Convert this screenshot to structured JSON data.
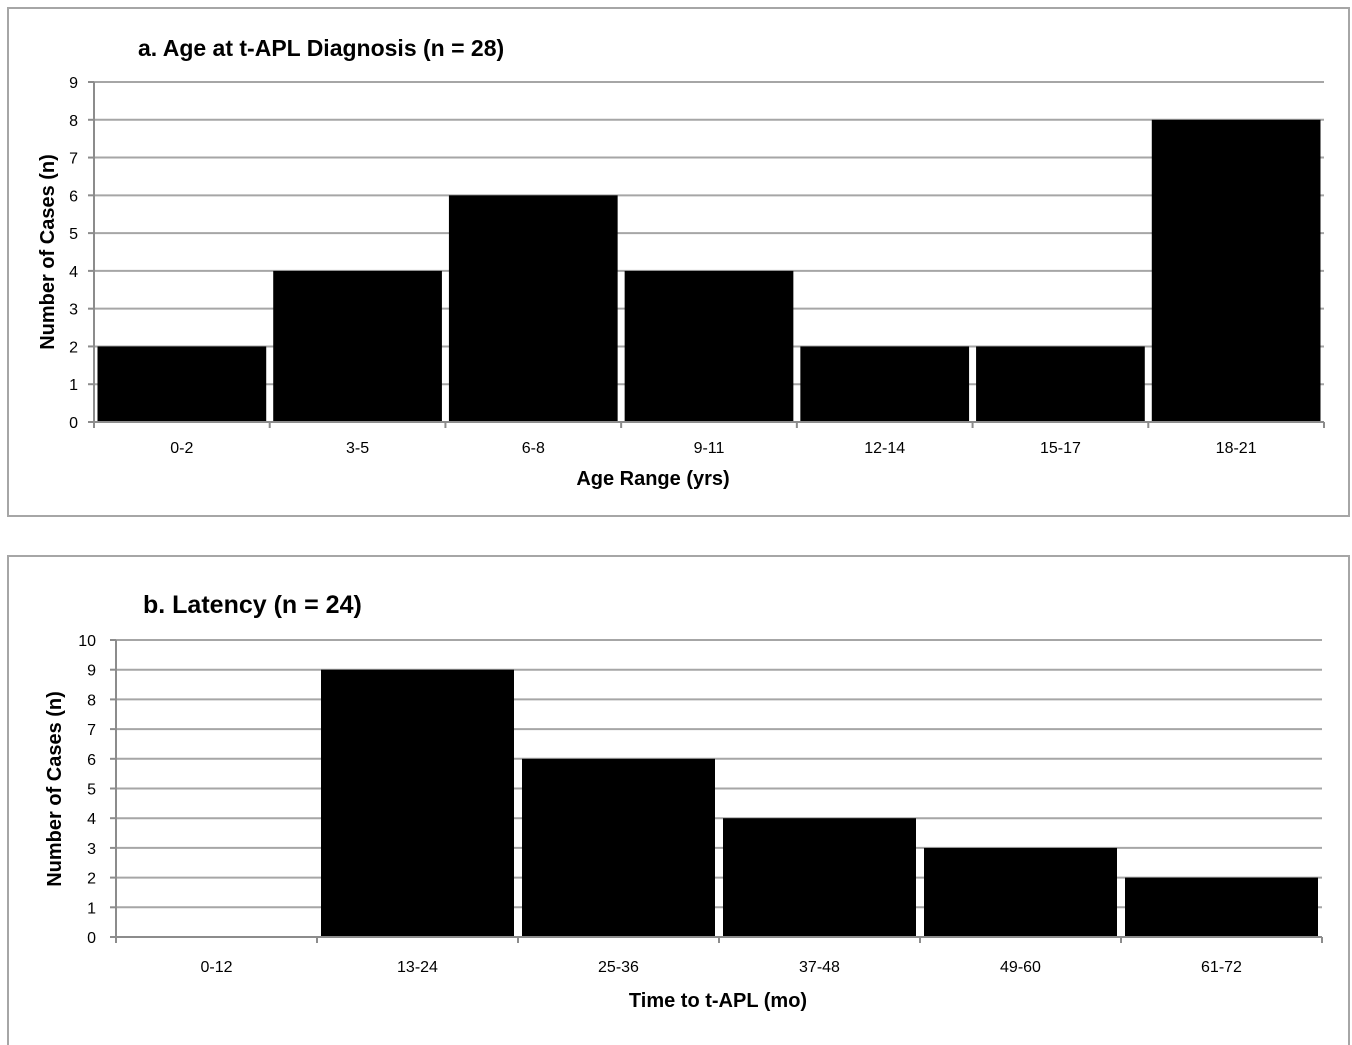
{
  "colors": {
    "bar": "#000000",
    "grid": "#a6a6a6",
    "axis": "#8c8c8c",
    "frame": "#a6a6a6"
  },
  "chart_data": [
    {
      "type": "bar",
      "title": "a. Age at t-APL Diagnosis (n = 28)",
      "xlabel": "Age Range (yrs)",
      "ylabel": "Number of Cases (n)",
      "categories": [
        "0-2",
        "3-5",
        "6-8",
        "9-11",
        "12-14",
        "15-17",
        "18-21"
      ],
      "values": [
        2,
        4,
        6,
        4,
        2,
        2,
        8
      ],
      "ylim": [
        0,
        9
      ],
      "yticks": [
        0,
        1,
        2,
        3,
        4,
        5,
        6,
        7,
        8,
        9
      ],
      "grid": true,
      "legend": "none"
    },
    {
      "type": "bar",
      "title": "b. Latency (n = 24)",
      "xlabel": "Time to t-APL (mo)",
      "ylabel": "Number of Cases (n)",
      "categories": [
        "0-12",
        "13-24",
        "25-36",
        "37-48",
        "49-60",
        "61-72"
      ],
      "values": [
        0,
        9,
        6,
        4,
        3,
        2
      ],
      "ylim": [
        0,
        10
      ],
      "yticks": [
        0,
        1,
        2,
        3,
        4,
        5,
        6,
        7,
        8,
        9,
        10
      ],
      "grid": true,
      "legend": "none"
    }
  ]
}
